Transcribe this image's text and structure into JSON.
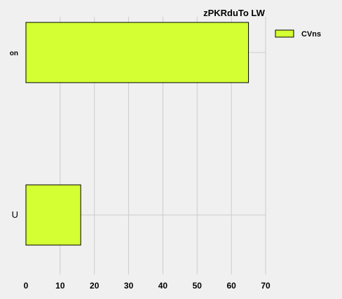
{
  "chart_data": {
    "type": "bar",
    "orientation": "horizontal",
    "title": "zPKRduTo LW",
    "xlabel": "",
    "ylabel": "",
    "categories": [
      "U",
      "on"
    ],
    "series": [
      {
        "name": "CVns",
        "values": [
          16,
          65
        ],
        "color": "#d4ff33"
      }
    ],
    "xlim": [
      0,
      70
    ],
    "xticks": [
      0,
      10,
      20,
      30,
      40,
      50,
      60,
      70
    ],
    "grid": true,
    "legend_position": "top-right"
  },
  "colors": {
    "background": "#f0f0f0",
    "grid": "#cccccc",
    "bar": "#d4ff33",
    "bar_edge": "#000000"
  }
}
